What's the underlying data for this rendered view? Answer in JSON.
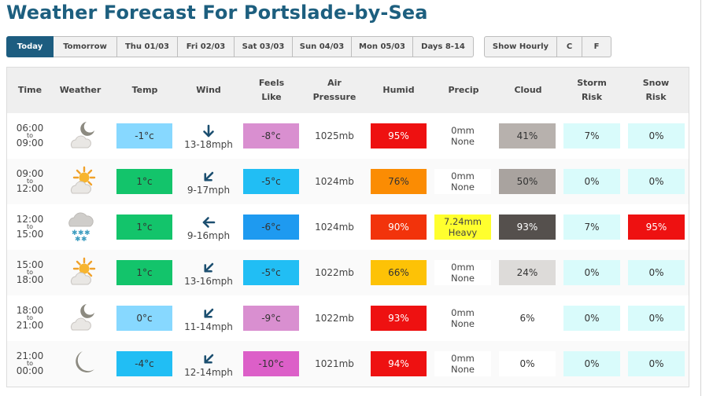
{
  "page": {
    "title": "Weather Forecast For Portslade-by-Sea"
  },
  "tabs": [
    {
      "label": "Today",
      "active": true
    },
    {
      "label": "Tomorrow"
    },
    {
      "label": "Thu 01/03"
    },
    {
      "label": "Fri 02/03"
    },
    {
      "label": "Sat 03/03"
    },
    {
      "label": "Sun 04/03"
    },
    {
      "label": "Mon 05/03"
    },
    {
      "label": "Days 8-14"
    }
  ],
  "options": [
    {
      "label": "Show Hourly"
    },
    {
      "label": "C"
    },
    {
      "label": "F"
    }
  ],
  "columns": [
    "Time",
    "Weather",
    "Temp",
    "Wind",
    "Feels\nLike",
    "Air\nPressure",
    "Humid",
    "Precip",
    "Cloud",
    "Storm\nRisk",
    "Snow\nRisk"
  ],
  "rows": [
    {
      "from": "06:00",
      "to_word": "to",
      "to": "09:00",
      "weather_icon": "cloud-moon-icon",
      "temp": "-1°c",
      "temp_color": "#87d8ff",
      "wind_speed": "13-18mph",
      "wind_dir": "north",
      "feels": "-8°c",
      "feels_color": "#d98fd0",
      "pressure": "1025mb",
      "humid": "95%",
      "humid_color": "#ee1111",
      "precip_amount": "0mm",
      "precip_type": "None",
      "precip_color": "#ffffff",
      "cloud": "41%",
      "cloud_color": "#b7b1ad",
      "storm": "7%",
      "storm_color": "#d9fbfb",
      "snow": "0%",
      "snow_color": "#d9fbfb"
    },
    {
      "from": "09:00",
      "to_word": "to",
      "to": "12:00",
      "weather_icon": "cloud-sun-icon",
      "temp": "1°c",
      "temp_color": "#13c46b",
      "wind_speed": "9-17mph",
      "wind_dir": "north-east",
      "feels": "-5°c",
      "feels_color": "#21bef4",
      "pressure": "1024mb",
      "humid": "76%",
      "humid_color": "#fb8c03",
      "precip_amount": "0mm",
      "precip_type": "None",
      "precip_color": "#ffffff",
      "cloud": "50%",
      "cloud_color": "#a9a39f",
      "storm": "0%",
      "storm_color": "#d9fbfb",
      "snow": "0%",
      "snow_color": "#d9fbfb"
    },
    {
      "from": "12:00",
      "to_word": "to",
      "to": "15:00",
      "weather_icon": "cloud-snow-icon",
      "temp": "1°c",
      "temp_color": "#13c46b",
      "wind_speed": "9-16mph",
      "wind_dir": "east",
      "feels": "-6°c",
      "feels_color": "#1e9af0",
      "pressure": "1024mb",
      "humid": "90%",
      "humid_color": "#f2330b",
      "precip_amount": "7.24mm",
      "precip_type": "Heavy",
      "precip_color": "#ffff2e",
      "cloud": "93%",
      "cloud_color": "#55504d",
      "storm": "7%",
      "storm_color": "#d9fbfb",
      "snow": "95%",
      "snow_color": "#ee1111"
    },
    {
      "from": "15:00",
      "to_word": "to",
      "to": "18:00",
      "weather_icon": "cloud-sun-icon",
      "temp": "1°c",
      "temp_color": "#13c46b",
      "wind_speed": "13-16mph",
      "wind_dir": "north-east",
      "feels": "-5°c",
      "feels_color": "#21bef4",
      "pressure": "1022mb",
      "humid": "66%",
      "humid_color": "#fdc206",
      "precip_amount": "0mm",
      "precip_type": "None",
      "precip_color": "#ffffff",
      "cloud": "24%",
      "cloud_color": "#dddbd9",
      "storm": "0%",
      "storm_color": "#d9fbfb",
      "snow": "0%",
      "snow_color": "#d9fbfb"
    },
    {
      "from": "18:00",
      "to_word": "to",
      "to": "21:00",
      "weather_icon": "cloud-moon-icon",
      "temp": "0°c",
      "temp_color": "#87d8ff",
      "wind_speed": "11-14mph",
      "wind_dir": "north-east",
      "feels": "-9°c",
      "feels_color": "#d98fd0",
      "pressure": "1022mb",
      "humid": "93%",
      "humid_color": "#ee1111",
      "precip_amount": "0mm",
      "precip_type": "None",
      "precip_color": "#ffffff",
      "cloud": "6%",
      "cloud_color": "#ffffff",
      "storm": "0%",
      "storm_color": "#d9fbfb",
      "snow": "0%",
      "snow_color": "#d9fbfb"
    },
    {
      "from": "21:00",
      "to_word": "to",
      "to": "00:00",
      "weather_icon": "moon-icon",
      "temp": "-4°c",
      "temp_color": "#21bef4",
      "wind_speed": "12-14mph",
      "wind_dir": "north-east",
      "feels": "-10°c",
      "feels_color": "#dc5fc8",
      "pressure": "1021mb",
      "humid": "94%",
      "humid_color": "#ee1111",
      "precip_amount": "0mm",
      "precip_type": "None",
      "precip_color": "#ffffff",
      "cloud": "0%",
      "cloud_color": "#ffffff",
      "storm": "0%",
      "storm_color": "#d9fbfb",
      "snow": "0%",
      "snow_color": "#d9fbfb"
    }
  ]
}
